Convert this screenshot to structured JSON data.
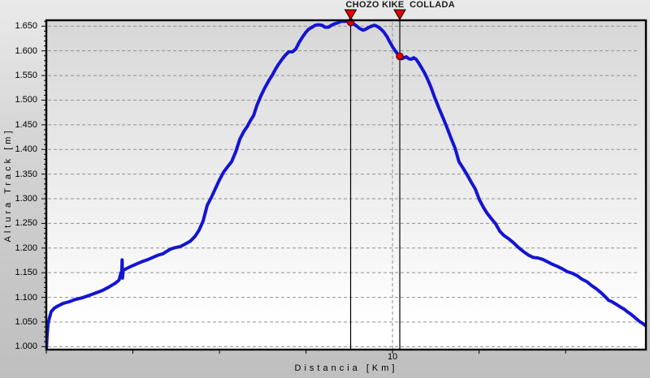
{
  "chart_data": {
    "type": "line",
    "title": "",
    "xlabel": "Distancia [Km]",
    "ylabel": "Altura Track [m]",
    "xlim": [
      0,
      17.32
    ],
    "ylim": [
      994,
      1662
    ],
    "grid": true,
    "legend": "none",
    "x_ticks": [
      0,
      2.5,
      5,
      7.5,
      10,
      12.5,
      15
    ],
    "x_tick_labels": [
      {
        "value": 10,
        "label": "10"
      }
    ],
    "x_gridlines": [
      10
    ],
    "y_minor_tick_step": 10,
    "y_ticks": [
      {
        "value": 1000,
        "label": "1.000"
      },
      {
        "value": 1050,
        "label": "1.050"
      },
      {
        "value": 1100,
        "label": "1.100"
      },
      {
        "value": 1150,
        "label": "1.150"
      },
      {
        "value": 1200,
        "label": "1.200"
      },
      {
        "value": 1250,
        "label": "1.250"
      },
      {
        "value": 1300,
        "label": "1.300"
      },
      {
        "value": 1350,
        "label": "1.350"
      },
      {
        "value": 1400,
        "label": "1.400"
      },
      {
        "value": 1450,
        "label": "1.450"
      },
      {
        "value": 1500,
        "label": "1.500"
      },
      {
        "value": 1550,
        "label": "1.550"
      },
      {
        "value": 1600,
        "label": "1.600"
      },
      {
        "value": 1650,
        "label": "1.650"
      }
    ],
    "waypoints": [
      {
        "label": "CHOZO KIKE",
        "km": 8.79,
        "elevation_m": 1658
      },
      {
        "label": "COLLADA",
        "km": 10.21,
        "elevation_m": 1589
      }
    ],
    "colors": {
      "line": "#1414d2",
      "marker_fill": "#e60000",
      "marker_edge": "#5c0000",
      "grid": "#909090",
      "axis": "#000000",
      "text": "#000000",
      "plot_bg_top": "#d7d7d7",
      "plot_bg_mid": "#efefef",
      "plot_bg_bottom": "#ffffff"
    },
    "series": [
      {
        "name": "Altura Track",
        "color": "#1414d2",
        "points": [
          [
            0.0,
            992
          ],
          [
            0.02,
            1020
          ],
          [
            0.05,
            1046
          ],
          [
            0.09,
            1058
          ],
          [
            0.14,
            1071
          ],
          [
            0.23,
            1078
          ],
          [
            0.35,
            1083
          ],
          [
            0.49,
            1088
          ],
          [
            0.66,
            1091
          ],
          [
            0.85,
            1096
          ],
          [
            1.03,
            1099
          ],
          [
            1.24,
            1104
          ],
          [
            1.43,
            1109
          ],
          [
            1.62,
            1114
          ],
          [
            1.81,
            1121
          ],
          [
            2.0,
            1129
          ],
          [
            2.1,
            1135
          ],
          [
            2.16,
            1150
          ],
          [
            2.18,
            1153
          ],
          [
            2.19,
            1176
          ],
          [
            2.2,
            1139
          ],
          [
            2.22,
            1155
          ],
          [
            2.28,
            1157
          ],
          [
            2.42,
            1162
          ],
          [
            2.58,
            1167
          ],
          [
            2.75,
            1172
          ],
          [
            2.91,
            1176
          ],
          [
            3.08,
            1181
          ],
          [
            3.24,
            1186
          ],
          [
            3.36,
            1188
          ],
          [
            3.47,
            1193
          ],
          [
            3.59,
            1198
          ],
          [
            3.73,
            1201
          ],
          [
            3.87,
            1203
          ],
          [
            4.01,
            1208
          ],
          [
            4.16,
            1214
          ],
          [
            4.3,
            1224
          ],
          [
            4.41,
            1236
          ],
          [
            4.53,
            1255
          ],
          [
            4.65,
            1287
          ],
          [
            4.77,
            1303
          ],
          [
            4.88,
            1320
          ],
          [
            5.0,
            1338
          ],
          [
            5.12,
            1354
          ],
          [
            5.23,
            1364
          ],
          [
            5.35,
            1375
          ],
          [
            5.47,
            1395
          ],
          [
            5.59,
            1421
          ],
          [
            5.7,
            1436
          ],
          [
            5.8,
            1446
          ],
          [
            5.89,
            1458
          ],
          [
            5.99,
            1469
          ],
          [
            6.08,
            1489
          ],
          [
            6.2,
            1509
          ],
          [
            6.31,
            1525
          ],
          [
            6.43,
            1540
          ],
          [
            6.53,
            1551
          ],
          [
            6.62,
            1563
          ],
          [
            6.71,
            1573
          ],
          [
            6.81,
            1583
          ],
          [
            6.9,
            1591
          ],
          [
            7.0,
            1598
          ],
          [
            7.11,
            1598
          ],
          [
            7.21,
            1604
          ],
          [
            7.3,
            1617
          ],
          [
            7.39,
            1627
          ],
          [
            7.49,
            1637
          ],
          [
            7.58,
            1644
          ],
          [
            7.68,
            1648
          ],
          [
            7.77,
            1652
          ],
          [
            7.86,
            1653
          ],
          [
            7.96,
            1652
          ],
          [
            8.05,
            1648
          ],
          [
            8.15,
            1648
          ],
          [
            8.24,
            1652
          ],
          [
            8.33,
            1655
          ],
          [
            8.43,
            1657
          ],
          [
            8.52,
            1660
          ],
          [
            8.61,
            1660
          ],
          [
            8.71,
            1660
          ],
          [
            8.79,
            1658
          ],
          [
            8.87,
            1655
          ],
          [
            8.97,
            1650
          ],
          [
            9.06,
            1645
          ],
          [
            9.15,
            1642
          ],
          [
            9.23,
            1644
          ],
          [
            9.3,
            1647
          ],
          [
            9.39,
            1650
          ],
          [
            9.48,
            1652
          ],
          [
            9.55,
            1650
          ],
          [
            9.65,
            1645
          ],
          [
            9.74,
            1639
          ],
          [
            9.84,
            1629
          ],
          [
            9.93,
            1617
          ],
          [
            10.02,
            1606
          ],
          [
            10.12,
            1596
          ],
          [
            10.21,
            1589
          ],
          [
            10.26,
            1584
          ],
          [
            10.33,
            1586
          ],
          [
            10.4,
            1588
          ],
          [
            10.47,
            1584
          ],
          [
            10.54,
            1583
          ],
          [
            10.61,
            1586
          ],
          [
            10.68,
            1583
          ],
          [
            10.75,
            1576
          ],
          [
            10.82,
            1568
          ],
          [
            10.92,
            1556
          ],
          [
            11.01,
            1543
          ],
          [
            11.1,
            1528
          ],
          [
            11.22,
            1505
          ],
          [
            11.34,
            1484
          ],
          [
            11.46,
            1464
          ],
          [
            11.57,
            1445
          ],
          [
            11.69,
            1423
          ],
          [
            11.81,
            1402
          ],
          [
            11.92,
            1375
          ],
          [
            12.04,
            1362
          ],
          [
            12.16,
            1348
          ],
          [
            12.28,
            1333
          ],
          [
            12.39,
            1320
          ],
          [
            12.51,
            1298
          ],
          [
            12.63,
            1282
          ],
          [
            12.74,
            1270
          ],
          [
            12.86,
            1259
          ],
          [
            12.98,
            1249
          ],
          [
            13.1,
            1234
          ],
          [
            13.21,
            1226
          ],
          [
            13.35,
            1219
          ],
          [
            13.49,
            1211
          ],
          [
            13.64,
            1201
          ],
          [
            13.78,
            1193
          ],
          [
            13.92,
            1186
          ],
          [
            14.06,
            1181
          ],
          [
            14.2,
            1180
          ],
          [
            14.34,
            1177
          ],
          [
            14.48,
            1172
          ],
          [
            14.62,
            1167
          ],
          [
            14.76,
            1163
          ],
          [
            14.9,
            1158
          ],
          [
            15.05,
            1152
          ],
          [
            15.19,
            1149
          ],
          [
            15.33,
            1144
          ],
          [
            15.47,
            1137
          ],
          [
            15.61,
            1132
          ],
          [
            15.75,
            1124
          ],
          [
            15.89,
            1117
          ],
          [
            16.03,
            1109
          ],
          [
            16.15,
            1101
          ],
          [
            16.24,
            1094
          ],
          [
            16.34,
            1091
          ],
          [
            16.46,
            1086
          ],
          [
            16.57,
            1081
          ],
          [
            16.69,
            1076
          ],
          [
            16.78,
            1071
          ],
          [
            16.9,
            1065
          ],
          [
            17.02,
            1058
          ],
          [
            17.14,
            1051
          ],
          [
            17.23,
            1047
          ],
          [
            17.3,
            1043
          ]
        ]
      }
    ]
  }
}
